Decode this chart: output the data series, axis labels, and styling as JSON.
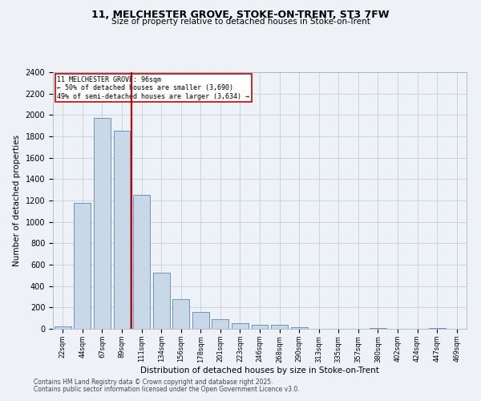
{
  "title": "11, MELCHESTER GROVE, STOKE-ON-TRENT, ST3 7FW",
  "subtitle": "Size of property relative to detached houses in Stoke-on-Trent",
  "xlabel": "Distribution of detached houses by size in Stoke-on-Trent",
  "ylabel": "Number of detached properties",
  "categories": [
    "22sqm",
    "44sqm",
    "67sqm",
    "89sqm",
    "111sqm",
    "134sqm",
    "156sqm",
    "178sqm",
    "201sqm",
    "223sqm",
    "246sqm",
    "268sqm",
    "290sqm",
    "313sqm",
    "335sqm",
    "357sqm",
    "380sqm",
    "402sqm",
    "424sqm",
    "447sqm",
    "469sqm"
  ],
  "values": [
    25,
    1175,
    1975,
    1855,
    1250,
    525,
    275,
    155,
    90,
    50,
    40,
    40,
    15,
    0,
    0,
    0,
    5,
    0,
    0,
    5,
    0
  ],
  "bar_color": "#c8d8e8",
  "bar_edge_color": "#5a8ab0",
  "vline_color": "#cc0000",
  "annotation_lines": [
    "11 MELCHESTER GROVE: 96sqm",
    "← 50% of detached houses are smaller (3,690)",
    "49% of semi-detached houses are larger (3,634) →"
  ],
  "annotation_box_color": "#ffffff",
  "annotation_box_edge": "#cc0000",
  "ylim": [
    0,
    2400
  ],
  "yticks": [
    0,
    200,
    400,
    600,
    800,
    1000,
    1200,
    1400,
    1600,
    1800,
    2000,
    2200,
    2400
  ],
  "grid_color": "#c0c8d8",
  "footnote1": "Contains HM Land Registry data © Crown copyright and database right 2025.",
  "footnote2": "Contains public sector information licensed under the Open Government Licence v3.0.",
  "bg_color": "#eef2f7"
}
